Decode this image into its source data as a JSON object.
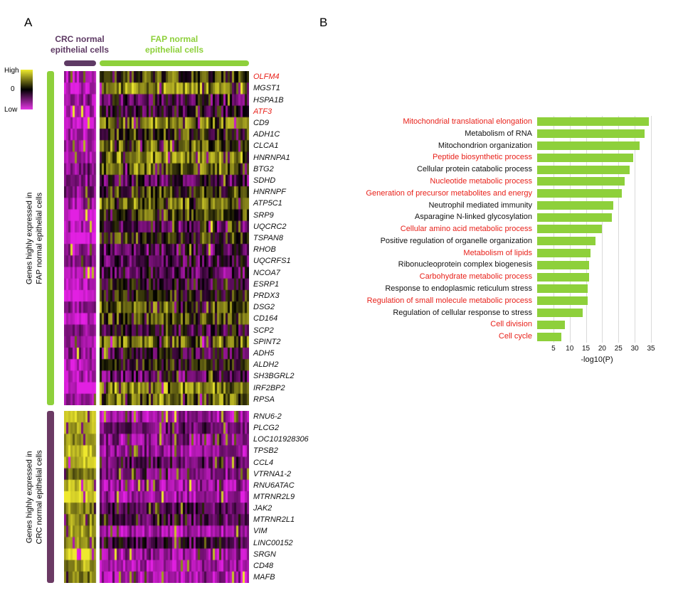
{
  "panels": {
    "a": "A",
    "b": "B"
  },
  "chart_data": [
    {
      "type": "heatmap",
      "panel": "A",
      "colormap": {
        "high_label": "High",
        "mid_label": "0",
        "low_label": "Low",
        "high_color": "#f0ec2e",
        "mid_color": "#000000",
        "low_color": "#e437e4"
      },
      "red_gene_color": "#e8211a",
      "col_groups": [
        {
          "id": "crc",
          "label": "CRC normal\nepithelial cells",
          "color": "#5e3a64",
          "n_cells": 15
        },
        {
          "id": "fap",
          "label": "FAP normal\nepithelial cells",
          "color": "#8ed03b",
          "n_cells": 70
        }
      ],
      "row_blocks": [
        {
          "id": "fap_high",
          "side_label": "Genes highly expressed in\nFAP normal epithelial cells",
          "side_color": "#8ed03b",
          "expression": {
            "crc_cells": "low",
            "fap_cells": "mixed-high"
          },
          "genes": [
            "OLFM4",
            "MGST1",
            "HSPA1B",
            "ATF3",
            "CD9",
            "ADH1C",
            "CLCA1",
            "HNRNPA1",
            "BTG2",
            "SDHD",
            "HNRNPF",
            "ATP5C1",
            "SRP9",
            "UQCRC2",
            "TSPAN8",
            "RHOB",
            "UQCRFS1",
            "NCOA7",
            "ESRP1",
            "PRDX3",
            "DSG2",
            "CD164",
            "SCP2",
            "SPINT2",
            "ADH5",
            "ALDH2",
            "SH3BGRL2",
            "IRF2BP2",
            "RPSA"
          ],
          "red_genes": [
            "OLFM4",
            "ATF3"
          ]
        },
        {
          "id": "crc_high",
          "side_label": "Genes highly expressed in\nCRC normal epithelial cells",
          "side_color": "#6b3a64",
          "expression": {
            "crc_cells": "high",
            "fap_cells": "mixed-low"
          },
          "genes": [
            "RNU6-2",
            "PLCG2",
            "LOC101928306",
            "TPSB2",
            "CCL4",
            "VTRNA1-2",
            "RNU6ATAC",
            "MTRNR2L9",
            "JAK2",
            "MTRNR2L1",
            "VIM",
            "LINC00152",
            "SRGN",
            "CD48",
            "MAFB"
          ],
          "red_genes": []
        }
      ]
    },
    {
      "type": "bar",
      "panel": "B",
      "orientation": "horizontal",
      "title": "",
      "xlabel": "-log10(P)",
      "xlim": [
        0,
        36.75
      ],
      "xticks": [
        5,
        10,
        15,
        20,
        25,
        30,
        35
      ],
      "grid": true,
      "bar_color": "#8ed03b",
      "highlight_color": "#e8211a",
      "categories": [
        "Mitochondrial translational elongation",
        "Metabolism of RNA",
        "Mitochondrion organization",
        "Peptide biosynthetic process",
        "Cellular protein catabolic process",
        "Nucleotide metabolic process",
        "Generation of precursor metabolites and energy",
        "Neutrophil mediated immunity",
        "Asparagine N-linked glycosylation",
        "Cellular amino acid metabolic process",
        "Positive regulation of organelle organization",
        "Metabolism of lipids",
        "Ribonucleoprotein complex biogenesis",
        "Carbohydrate metabolic process",
        "Response to endoplasmic reticulum stress",
        "Regulation of small molecule metabolic process",
        "Regulation of cellular response to stress",
        "Cell division",
        "Cell cycle"
      ],
      "values": [
        34.3,
        33,
        31.5,
        29.5,
        28.5,
        27,
        26,
        23.5,
        23,
        20,
        18,
        16.5,
        16,
        16,
        15.5,
        15.5,
        14,
        8.5,
        7.5
      ],
      "highlighted": [
        true,
        false,
        false,
        true,
        false,
        true,
        true,
        false,
        false,
        true,
        false,
        true,
        false,
        true,
        false,
        true,
        false,
        true,
        true
      ]
    }
  ]
}
